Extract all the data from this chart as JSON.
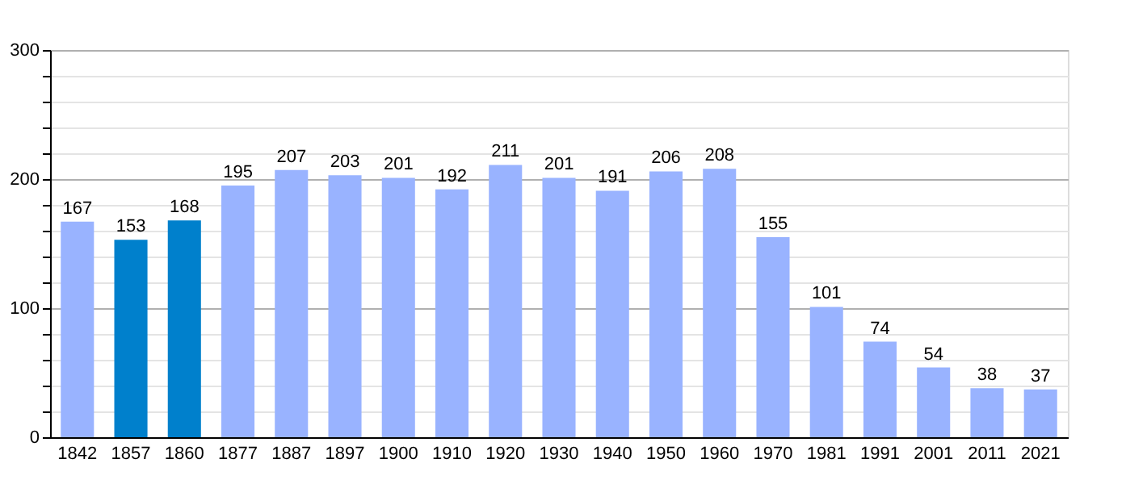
{
  "chart_data": {
    "type": "bar",
    "categories": [
      "1842",
      "1857",
      "1860",
      "1877",
      "1887",
      "1897",
      "1900",
      "1910",
      "1920",
      "1930",
      "1940",
      "1950",
      "1960",
      "1970",
      "1981",
      "1991",
      "2001",
      "2011",
      "2021"
    ],
    "values": [
      167,
      153,
      168,
      195,
      207,
      203,
      201,
      192,
      211,
      201,
      191,
      206,
      208,
      155,
      101,
      74,
      54,
      38,
      37
    ],
    "colors": [
      "#99b3ff",
      "#0080cc",
      "#0080cc",
      "#99b3ff",
      "#99b3ff",
      "#99b3ff",
      "#99b3ff",
      "#99b3ff",
      "#99b3ff",
      "#99b3ff",
      "#99b3ff",
      "#99b3ff",
      "#99b3ff",
      "#99b3ff",
      "#99b3ff",
      "#99b3ff",
      "#99b3ff",
      "#99b3ff",
      "#99b3ff"
    ],
    "ylim": [
      0,
      300
    ],
    "yticks": [
      0,
      {
        "value": 20,
        "label": null
      },
      {
        "value": 40,
        "label": null
      },
      {
        "value": 60,
        "label": null
      },
      {
        "value": 80,
        "label": null
      },
      100,
      {
        "value": 120,
        "label": null
      },
      {
        "value": 140,
        "label": null
      },
      {
        "value": 160,
        "label": null
      },
      {
        "value": 180,
        "label": null
      },
      200,
      {
        "value": 220,
        "label": null
      },
      {
        "value": 240,
        "label": null
      },
      {
        "value": 260,
        "label": null
      },
      {
        "value": 280,
        "label": null
      },
      300
    ],
    "grid": true,
    "data_labels": true
  }
}
